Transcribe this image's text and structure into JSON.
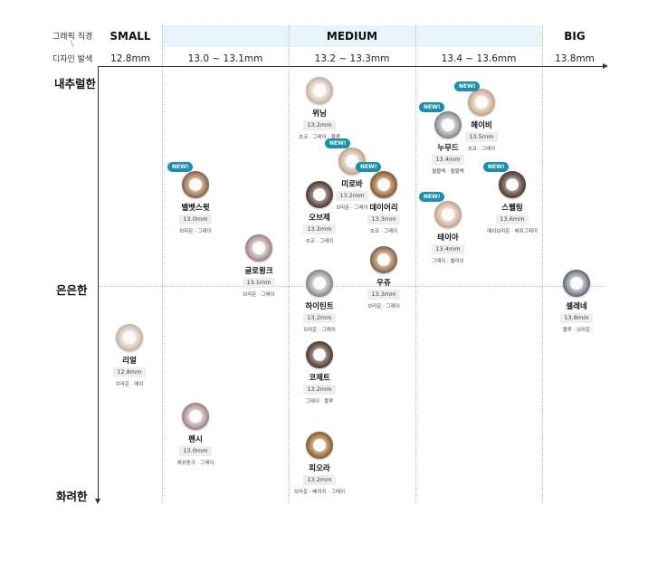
{
  "header": {
    "corner_top": "그래픽 직경",
    "corner_slash": "\\",
    "corner_bottom": "디자인 발색",
    "bands": [
      "SMALL",
      "MEDIUM",
      "BIG"
    ],
    "diameters": [
      "12.8mm",
      "13.0 ~ 13.1mm",
      "13.2 ~ 13.3mm",
      "13.4 ~ 13.6mm",
      "13.8mm"
    ]
  },
  "y_axis": {
    "top": "내추럴한",
    "middle": "은은한",
    "bottom": "화려한"
  },
  "new_badge": "NEW!",
  "lenses": [
    {
      "name": "위닝",
      "size": "13.2mm",
      "colors": "초코 · 그레이 · 블루",
      "new": false,
      "tone": "light"
    },
    {
      "name": "헤이비",
      "size": "13.5mm",
      "colors": "초코 · 그레이",
      "new": true,
      "tone": "beige"
    },
    {
      "name": "누무드",
      "size": "13.4mm",
      "colors": "윌블랙 · 윌블랙",
      "new": true,
      "tone": "grey"
    },
    {
      "name": "미로바",
      "size": "13.2mm",
      "colors": "브라운 · 그레이",
      "new": true,
      "tone": "beige"
    },
    {
      "name": "데이어리",
      "size": "13.3mm",
      "colors": "초코 · 그레이",
      "new": true,
      "tone": "choco"
    },
    {
      "name": "벨벳스윗",
      "size": "13.0mm",
      "colors": "브라운 · 그레이",
      "new": true,
      "tone": "brown"
    },
    {
      "name": "오브제",
      "size": "13.2mm",
      "colors": "초코 · 그레이",
      "new": false,
      "tone": "dark"
    },
    {
      "name": "스웰링",
      "size": "13.6mm",
      "colors": "에쉬브라운 · 에쉬그레이",
      "new": true,
      "tone": "dark"
    },
    {
      "name": "테이아",
      "size": "13.4mm",
      "colors": "그레이 · 올리브",
      "new": true,
      "tone": "beige"
    },
    {
      "name": "글로윙크",
      "size": "13.1mm",
      "colors": "브라운 · 그레이",
      "new": false,
      "tone": "pink"
    },
    {
      "name": "우쥬",
      "size": "13.3mm",
      "colors": "브라운 · 그레이",
      "new": false,
      "tone": "brown"
    },
    {
      "name": "하이틴트",
      "size": "13.2mm",
      "colors": "브라운 · 그레이",
      "new": false,
      "tone": "grey"
    },
    {
      "name": "셀레네",
      "size": "13.8mm",
      "colors": "블루 · 브라운",
      "new": false,
      "tone": "navy"
    },
    {
      "name": "리얼",
      "size": "12.8mm",
      "colors": "브라운 · 에쉬",
      "new": false,
      "tone": "light"
    },
    {
      "name": "코제트",
      "size": "13.2mm",
      "colors": "그레이 · 블루",
      "new": false,
      "tone": "dark"
    },
    {
      "name": "펜시",
      "size": "13.0mm",
      "colors": "에쉬핑크 · 그레이",
      "new": false,
      "tone": "pink"
    },
    {
      "name": "피오라",
      "size": "13.2mm",
      "colors": "브라운 · 베이지 · 그레이",
      "new": false,
      "tone": "choco"
    }
  ]
}
